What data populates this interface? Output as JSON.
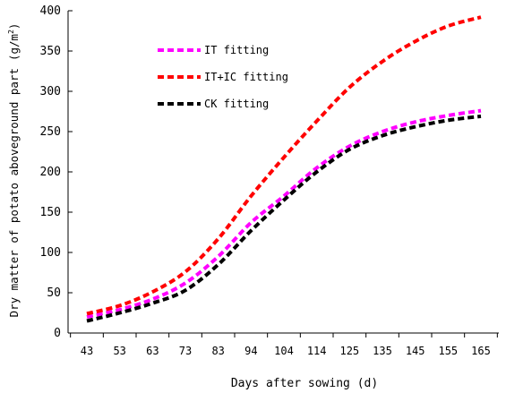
{
  "chart_data": {
    "type": "line",
    "xlabel": "Days after sowing (d)",
    "ylabel": {
      "main": "Dry matter of potato aboveground part",
      "unit_prefix": "(g/m",
      "unit_sup": "2",
      "unit_suffix": ")"
    },
    "ylim": [
      0,
      400
    ],
    "yticks": [
      "0",
      "50",
      "100",
      "150",
      "200",
      "250",
      "300",
      "350",
      "400"
    ],
    "x": [
      "43",
      "53",
      "63",
      "73",
      "83",
      "94",
      "104",
      "114",
      "125",
      "135",
      "145",
      "155",
      "165"
    ],
    "grid": false,
    "legend_position": "top-left",
    "series": [
      {
        "name": "IT fitting",
        "color": "#ff00ff",
        "values": [
          20,
          29,
          42,
          62,
          95,
          137,
          170,
          205,
          232,
          250,
          262,
          270,
          276
        ]
      },
      {
        "name": "IT+IC fitting",
        "color": "#ff0000",
        "values": [
          24,
          34,
          51,
          76,
          117,
          170,
          218,
          263,
          305,
          337,
          362,
          381,
          392
        ]
      },
      {
        "name": "CK fitting",
        "color": "#000000",
        "values": [
          15,
          25,
          37,
          53,
          85,
          127,
          165,
          200,
          228,
          245,
          256,
          264,
          269
        ]
      }
    ]
  }
}
